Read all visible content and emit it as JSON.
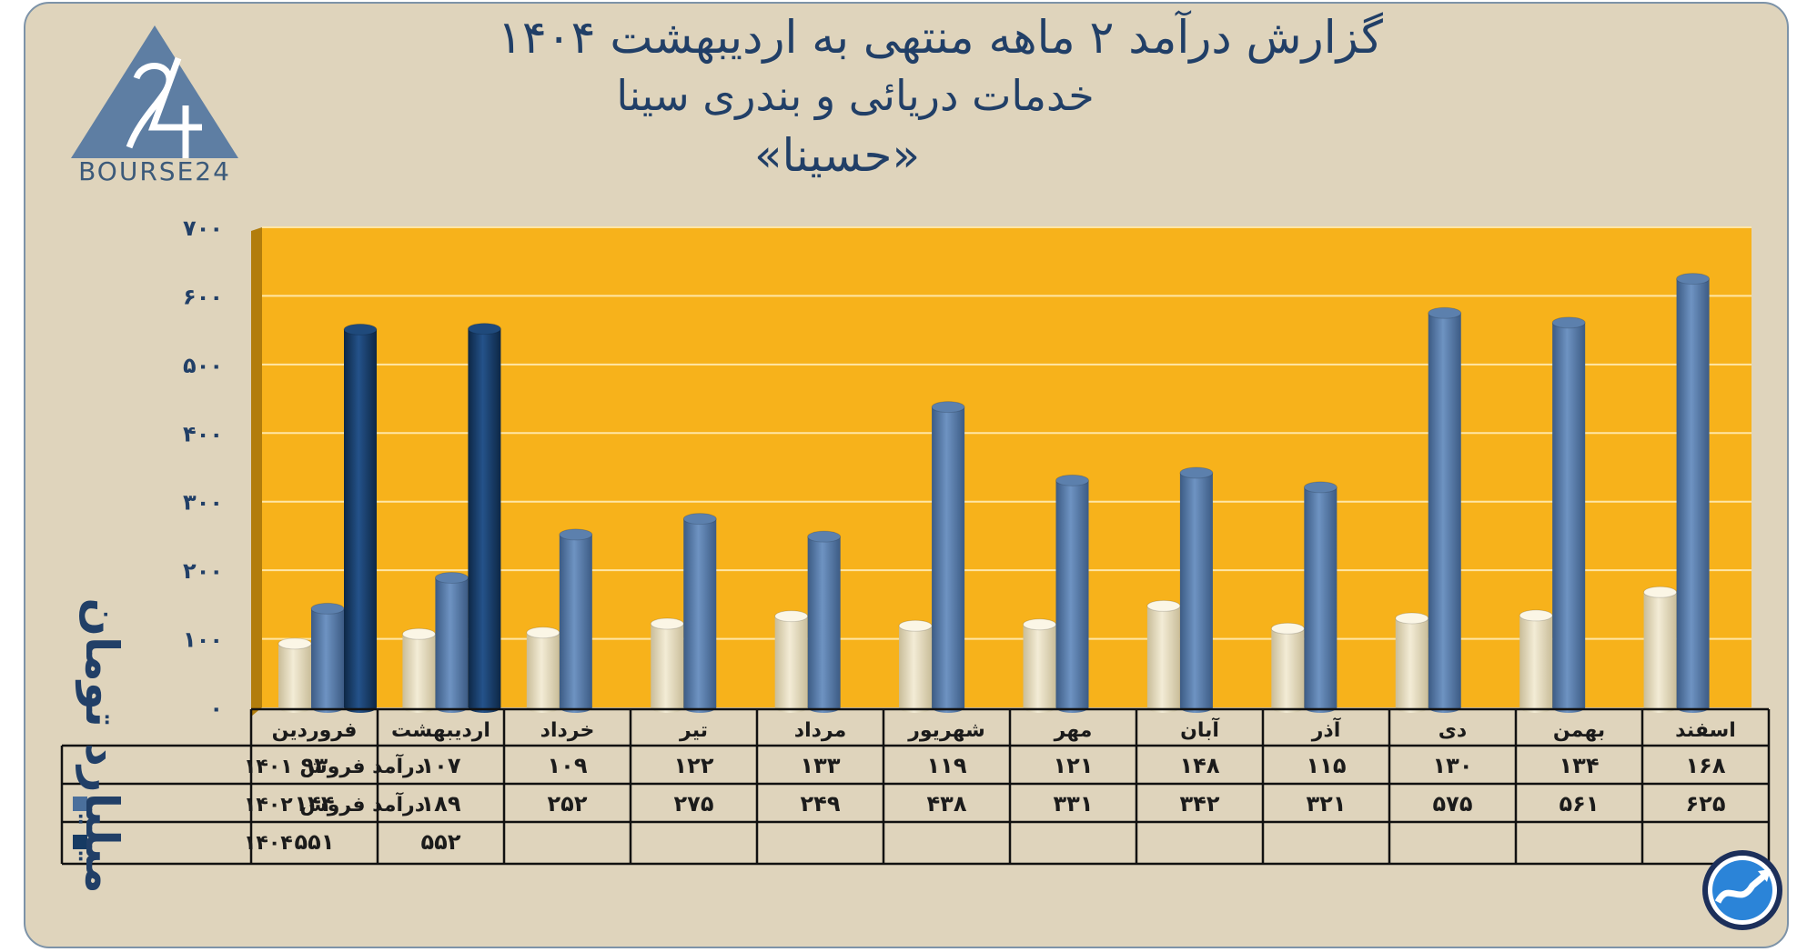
{
  "title_line1": "گزارش  درآمد ۲ ماهه منتهی به اردیبهشت ۱۴۰۴",
  "title_line2": "خدمات دریائی و بندری سینا",
  "title_line3": "«حسینا»",
  "logo_text": "BOURSE24",
  "colors": {
    "background": "#dfd4bc",
    "plot": "#f7b21b",
    "series_1401": "#e8dfc4",
    "series_1402": "#4a6f9c",
    "series_1404": "#163a63",
    "text": "#213f67"
  },
  "chart_data": {
    "type": "bar",
    "ylabel": "میلیارد تومان",
    "ylim": [
      0,
      700
    ],
    "yticks": [
      0,
      100,
      200,
      300,
      400,
      500,
      600,
      700
    ],
    "ytick_labels": [
      "۰",
      "۱۰۰",
      "۲۰۰",
      "۳۰۰",
      "۴۰۰",
      "۵۰۰",
      "۶۰۰",
      "۷۰۰"
    ],
    "grid": true,
    "categories": [
      "فروردین",
      "اردیبهشت",
      "خرداد",
      "تیر",
      "مرداد",
      "شهریور",
      "مهر",
      "آبان",
      "آذر",
      "دی",
      "بهمن",
      "اسفند"
    ],
    "series": [
      {
        "name": "درآمد فروش ۱۴۰۱",
        "values": [
          93,
          107,
          109,
          122,
          133,
          119,
          121,
          148,
          115,
          130,
          134,
          168
        ],
        "labels": [
          "۹۳",
          "۱۰۷",
          "۱۰۹",
          "۱۲۲",
          "۱۳۳",
          "۱۱۹",
          "۱۲۱",
          "۱۴۸",
          "۱۱۵",
          "۱۳۰",
          "۱۳۴",
          "۱۶۸"
        ]
      },
      {
        "name": "درآمد فروش ۱۴۰۲",
        "values": [
          144,
          189,
          252,
          275,
          249,
          438,
          331,
          342,
          321,
          575,
          561,
          625
        ],
        "labels": [
          "۱۴۴",
          "۱۸۹",
          "۲۵۲",
          "۲۷۵",
          "۲۴۹",
          "۴۳۸",
          "۳۳۱",
          "۳۴۲",
          "۳۲۱",
          "۵۷۵",
          "۵۶۱",
          "۶۲۵"
        ]
      },
      {
        "name": "۱۴۰۴",
        "values": [
          551,
          552,
          null,
          null,
          null,
          null,
          null,
          null,
          null,
          null,
          null,
          null
        ],
        "labels": [
          "۵۵۱",
          "۵۵۲",
          "",
          "",
          "",
          "",
          "",
          "",
          "",
          "",
          "",
          ""
        ]
      }
    ]
  }
}
